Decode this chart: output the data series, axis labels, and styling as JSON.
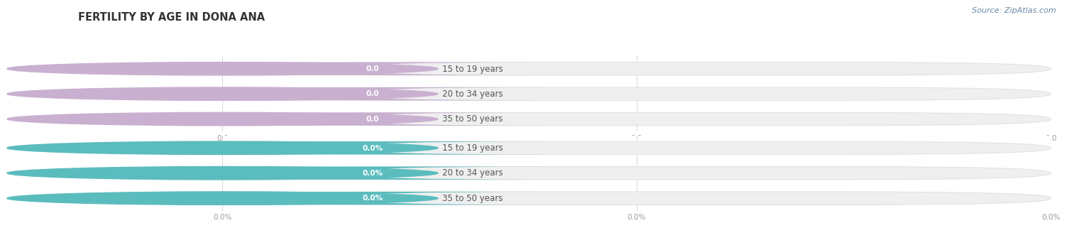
{
  "title": "FERTILITY BY AGE IN DONA ANA",
  "source_text": "Source: ZipAtlas.com",
  "top_section": {
    "categories": [
      "15 to 19 years",
      "20 to 34 years",
      "35 to 50 years"
    ],
    "values": [
      0.0,
      0.0,
      0.0
    ],
    "bar_color": "#c9b0d0",
    "label_format": "0.0",
    "tick_labels": [
      "0.0",
      "0.0",
      "0.0"
    ]
  },
  "bottom_section": {
    "categories": [
      "15 to 19 years",
      "20 to 34 years",
      "35 to 50 years"
    ],
    "values": [
      0.0,
      0.0,
      0.0
    ],
    "bar_color": "#5bbcbe",
    "label_format": "0.0%",
    "tick_labels": [
      "0.0%",
      "0.0%",
      "0.0%"
    ]
  },
  "bg_color": "#ffffff",
  "bar_bg_color": "#efefef",
  "bar_outline_color": "#e0e0e0",
  "title_fontsize": 10.5,
  "label_fontsize": 8.5,
  "value_fontsize": 7.5,
  "tick_fontsize": 7.5,
  "source_fontsize": 8,
  "fig_width": 14.06,
  "fig_height": 3.3
}
